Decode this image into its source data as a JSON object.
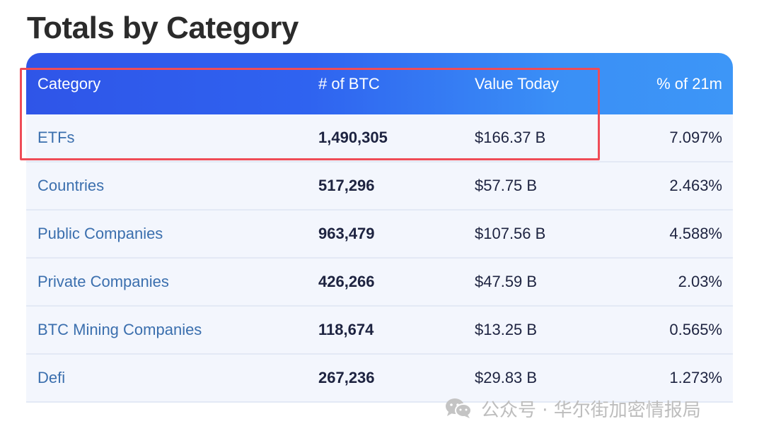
{
  "title": "Totals by Category",
  "table": {
    "headers": {
      "category": "Category",
      "btc": "# of BTC",
      "value": "Value Today",
      "percent": "% of 21m"
    },
    "rows": [
      {
        "category": "ETFs",
        "btc": "1,490,305",
        "value": "$166.37 B",
        "percent": "7.097%"
      },
      {
        "category": "Countries",
        "btc": "517,296",
        "value": "$57.75 B",
        "percent": "2.463%"
      },
      {
        "category": "Public Companies",
        "btc": "963,479",
        "value": "$107.56 B",
        "percent": "4.588%"
      },
      {
        "category": "Private Companies",
        "btc": "426,266",
        "value": "$47.59 B",
        "percent": "2.03%"
      },
      {
        "category": "BTC Mining Companies",
        "btc": "118,674",
        "value": "$13.25 B",
        "percent": "0.565%"
      },
      {
        "category": "Defi",
        "btc": "267,236",
        "value": "$29.83 B",
        "percent": "1.273%"
      }
    ]
  },
  "watermark": {
    "icon": "wechat-icon",
    "text": "公众号 · 华尔街加密情报局"
  },
  "colors": {
    "header_start": "#2f55e8",
    "header_end": "#3d96f7",
    "row_bg": "#f3f6fd",
    "category_link": "#3b6fae",
    "highlight": "#ef4c57"
  }
}
